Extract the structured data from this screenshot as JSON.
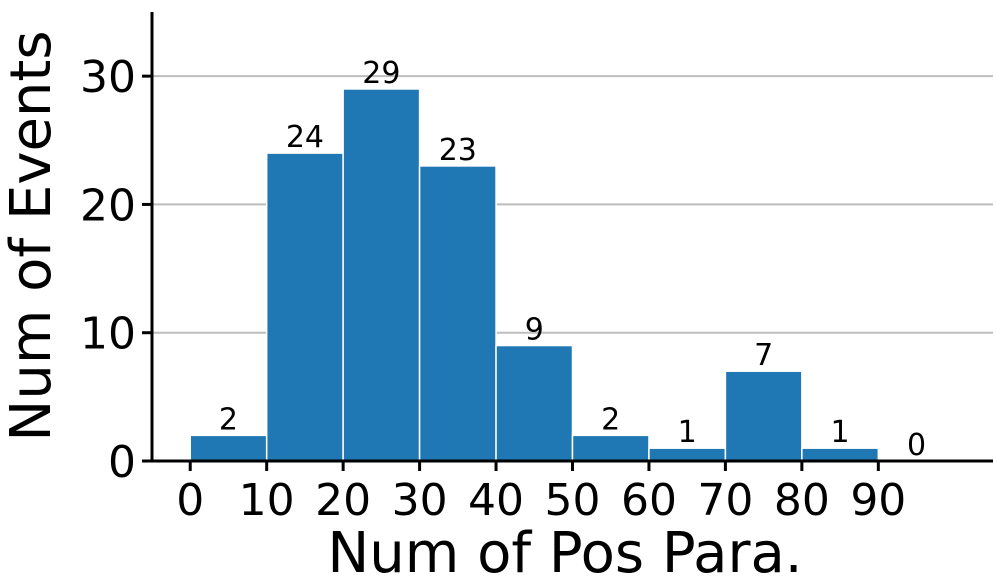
{
  "chart_data": {
    "type": "histogram",
    "x_label": "Num of Pos Para.",
    "y_label": "Num of Events",
    "bins": [
      0,
      10,
      20,
      30,
      40,
      50,
      60,
      70,
      80,
      90,
      100
    ],
    "values": [
      2,
      24,
      29,
      23,
      9,
      2,
      1,
      7,
      1,
      0
    ],
    "color": "#1f77b4",
    "xlim": [
      -5,
      105
    ],
    "ylim": [
      0,
      35
    ],
    "xticks": [
      0,
      10,
      20,
      30,
      40,
      50,
      60,
      70,
      80,
      90
    ],
    "yticks": [
      0,
      10,
      20,
      30
    ],
    "grid": true
  }
}
